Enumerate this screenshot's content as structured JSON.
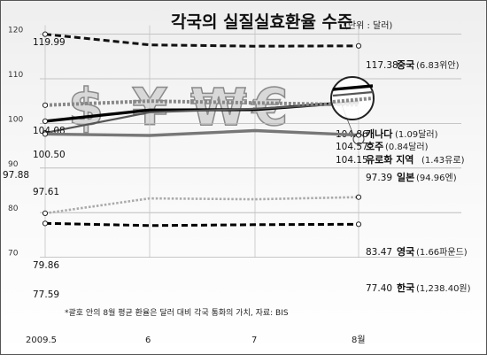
{
  "chart_data": {
    "type": "line",
    "title": "각국의 실질실효환율 수준",
    "unit": "(단위 : 달러)",
    "footnote": "*괄호 안의 8월 평균 환율은 달러 대비 각국 통화의 가치, 자료: BIS",
    "categories": [
      "2009.5",
      "6",
      "7",
      "8월"
    ],
    "y_ticks": [
      "120",
      "110",
      "100",
      "90",
      "80",
      "70"
    ],
    "ylim": [
      70,
      122
    ],
    "decor_symbols": [
      "$",
      "¥",
      "₩",
      "€"
    ],
    "series": [
      {
        "name": "중국",
        "note": "(6.83위안)",
        "values": [
          119.99,
          117.6,
          117.3,
          117.38
        ],
        "start_label": "119.99",
        "end_label": "117.38",
        "color": "#111111",
        "style": "dashed-bold"
      },
      {
        "name": "캐나다",
        "note": "(1.09달러)",
        "values": [
          100.5,
          103.0,
          103.1,
          104.86
        ],
        "start_label": "100.50",
        "end_label": "104.86",
        "color": "#000000",
        "style": "solid-bold"
      },
      {
        "name": "호주",
        "note": "(0.84달러)",
        "values": [
          97.88,
          102.5,
          103.3,
          104.57
        ],
        "start_label": "97.88",
        "end_label": "104.57",
        "color": "#555555",
        "style": "solid"
      },
      {
        "name": "유로화 지역",
        "note": "(1.43유로)",
        "values": [
          104.08,
          105.0,
          104.6,
          104.15
        ],
        "start_label": "104.08",
        "end_label": "104.15",
        "color": "#888888",
        "style": "dotted-bold"
      },
      {
        "name": "일본",
        "note": "(94.96엔)",
        "values": [
          97.61,
          97.3,
          98.4,
          97.39
        ],
        "start_label": "97.61",
        "end_label": "97.39",
        "color": "#777777",
        "style": "solid-bold"
      },
      {
        "name": "영국",
        "note": "(1.66파운드)",
        "values": [
          79.86,
          83.2,
          83.0,
          83.47
        ],
        "start_label": "79.86",
        "end_label": "83.47",
        "color": "#aaaaaa",
        "style": "dotted"
      },
      {
        "name": "한국",
        "note": "(1,238.40원)",
        "values": [
          77.59,
          77.1,
          77.3,
          77.4
        ],
        "start_label": "77.59",
        "end_label": "77.40",
        "color": "#000000",
        "style": "dashed-bold"
      }
    ]
  }
}
